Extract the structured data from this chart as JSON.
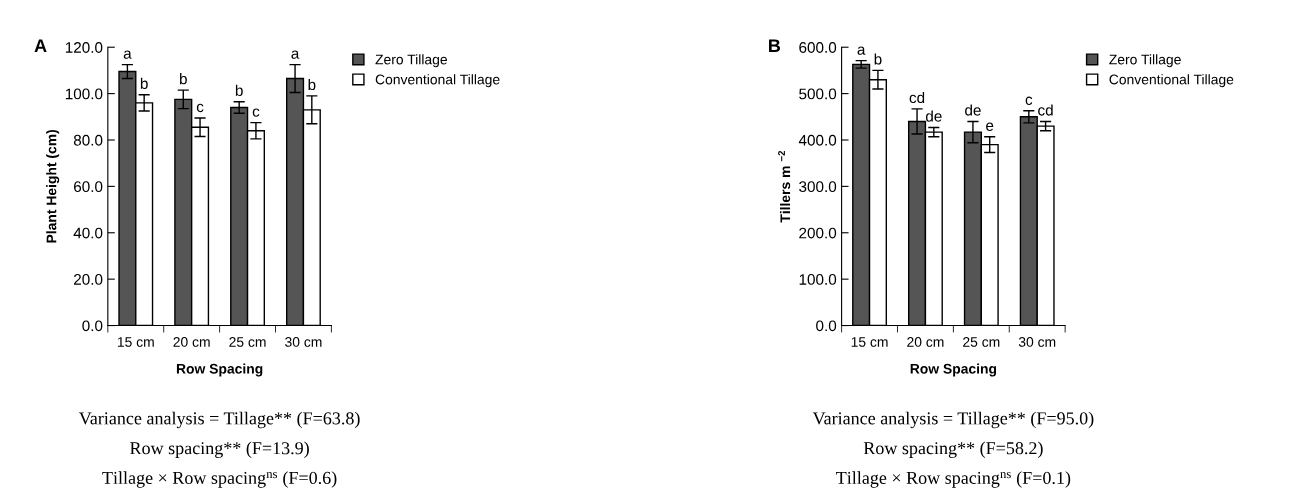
{
  "chart_data": [
    {
      "type": "bar",
      "title": "A",
      "xlabel": "Row Spacing",
      "ylabel": "Plant Height (cm)",
      "categories": [
        "15 cm",
        "20 cm",
        "25 cm",
        "30 cm"
      ],
      "series": [
        {
          "name": "Zero Tillage",
          "color": "#555555",
          "values": [
            109.5,
            97.5,
            94.0,
            106.5
          ],
          "errors": [
            3.0,
            4.0,
            2.5,
            6.0
          ],
          "value_labels": [
            "a",
            "b",
            "b",
            "a"
          ]
        },
        {
          "name": "Conventional Tillage",
          "color": "#ffffff",
          "values": [
            96.0,
            85.5,
            84.0,
            93.0
          ],
          "errors": [
            3.5,
            4.0,
            3.5,
            6.0
          ],
          "value_labels": [
            "b",
            "c",
            "c",
            "b"
          ]
        }
      ],
      "ylim": [
        0,
        120
      ],
      "yticks": [
        {
          "value": 0,
          "label": "0.0"
        },
        {
          "value": 20,
          "label": "20.0"
        },
        {
          "value": 40,
          "label": "40.0"
        },
        {
          "value": 60,
          "label": "60.0"
        },
        {
          "value": 80,
          "label": "80.0"
        },
        {
          "value": 100,
          "label": "100.0"
        },
        {
          "value": 120,
          "label": "120.0"
        }
      ],
      "grid": false,
      "legend": "top right",
      "annotations": [
        "Variance analysis = Tillage** (F=63.8)",
        "Row spacing** (F=13.9)",
        "Tillage × Row spacing$^{ns}$ (F=0.6)"
      ]
    },
    {
      "type": "bar",
      "title": "B",
      "xlabel": "Row Spacing",
      "ylabel": "Tillers m $^{−2}$",
      "categories": [
        "15 cm",
        "20 cm",
        "25 cm",
        "30 cm"
      ],
      "series": [
        {
          "name": "Zero Tillage",
          "color": "#555555",
          "values": [
            563,
            440,
            417,
            450
          ],
          "errors": [
            8,
            27,
            23,
            13
          ],
          "value_labels": [
            "a",
            "cd",
            "de",
            "c"
          ]
        },
        {
          "name": "Conventional Tillage",
          "color": "#ffffff",
          "values": [
            530,
            417,
            390,
            430
          ],
          "errors": [
            20,
            10,
            17,
            10
          ],
          "value_labels": [
            "b",
            "de",
            "e",
            "cd"
          ]
        }
      ],
      "ylim": [
        0,
        600
      ],
      "yticks": [
        {
          "value": 0,
          "label": "0.0"
        },
        {
          "value": 100,
          "label": "100.0"
        },
        {
          "value": 200,
          "label": "200.0"
        },
        {
          "value": 300,
          "label": "300.0"
        },
        {
          "value": 400,
          "label": "400.0"
        },
        {
          "value": 500,
          "label": "500.0"
        },
        {
          "value": 600,
          "label": "600.0"
        }
      ],
      "grid": false,
      "legend": "top right",
      "annotations": [
        "Variance analysis = Tillage** (F=95.0)",
        "Row spacing** (F=58.2)",
        "Tillage × Row spacing$^{ns}$ (F=0.1)"
      ]
    }
  ]
}
